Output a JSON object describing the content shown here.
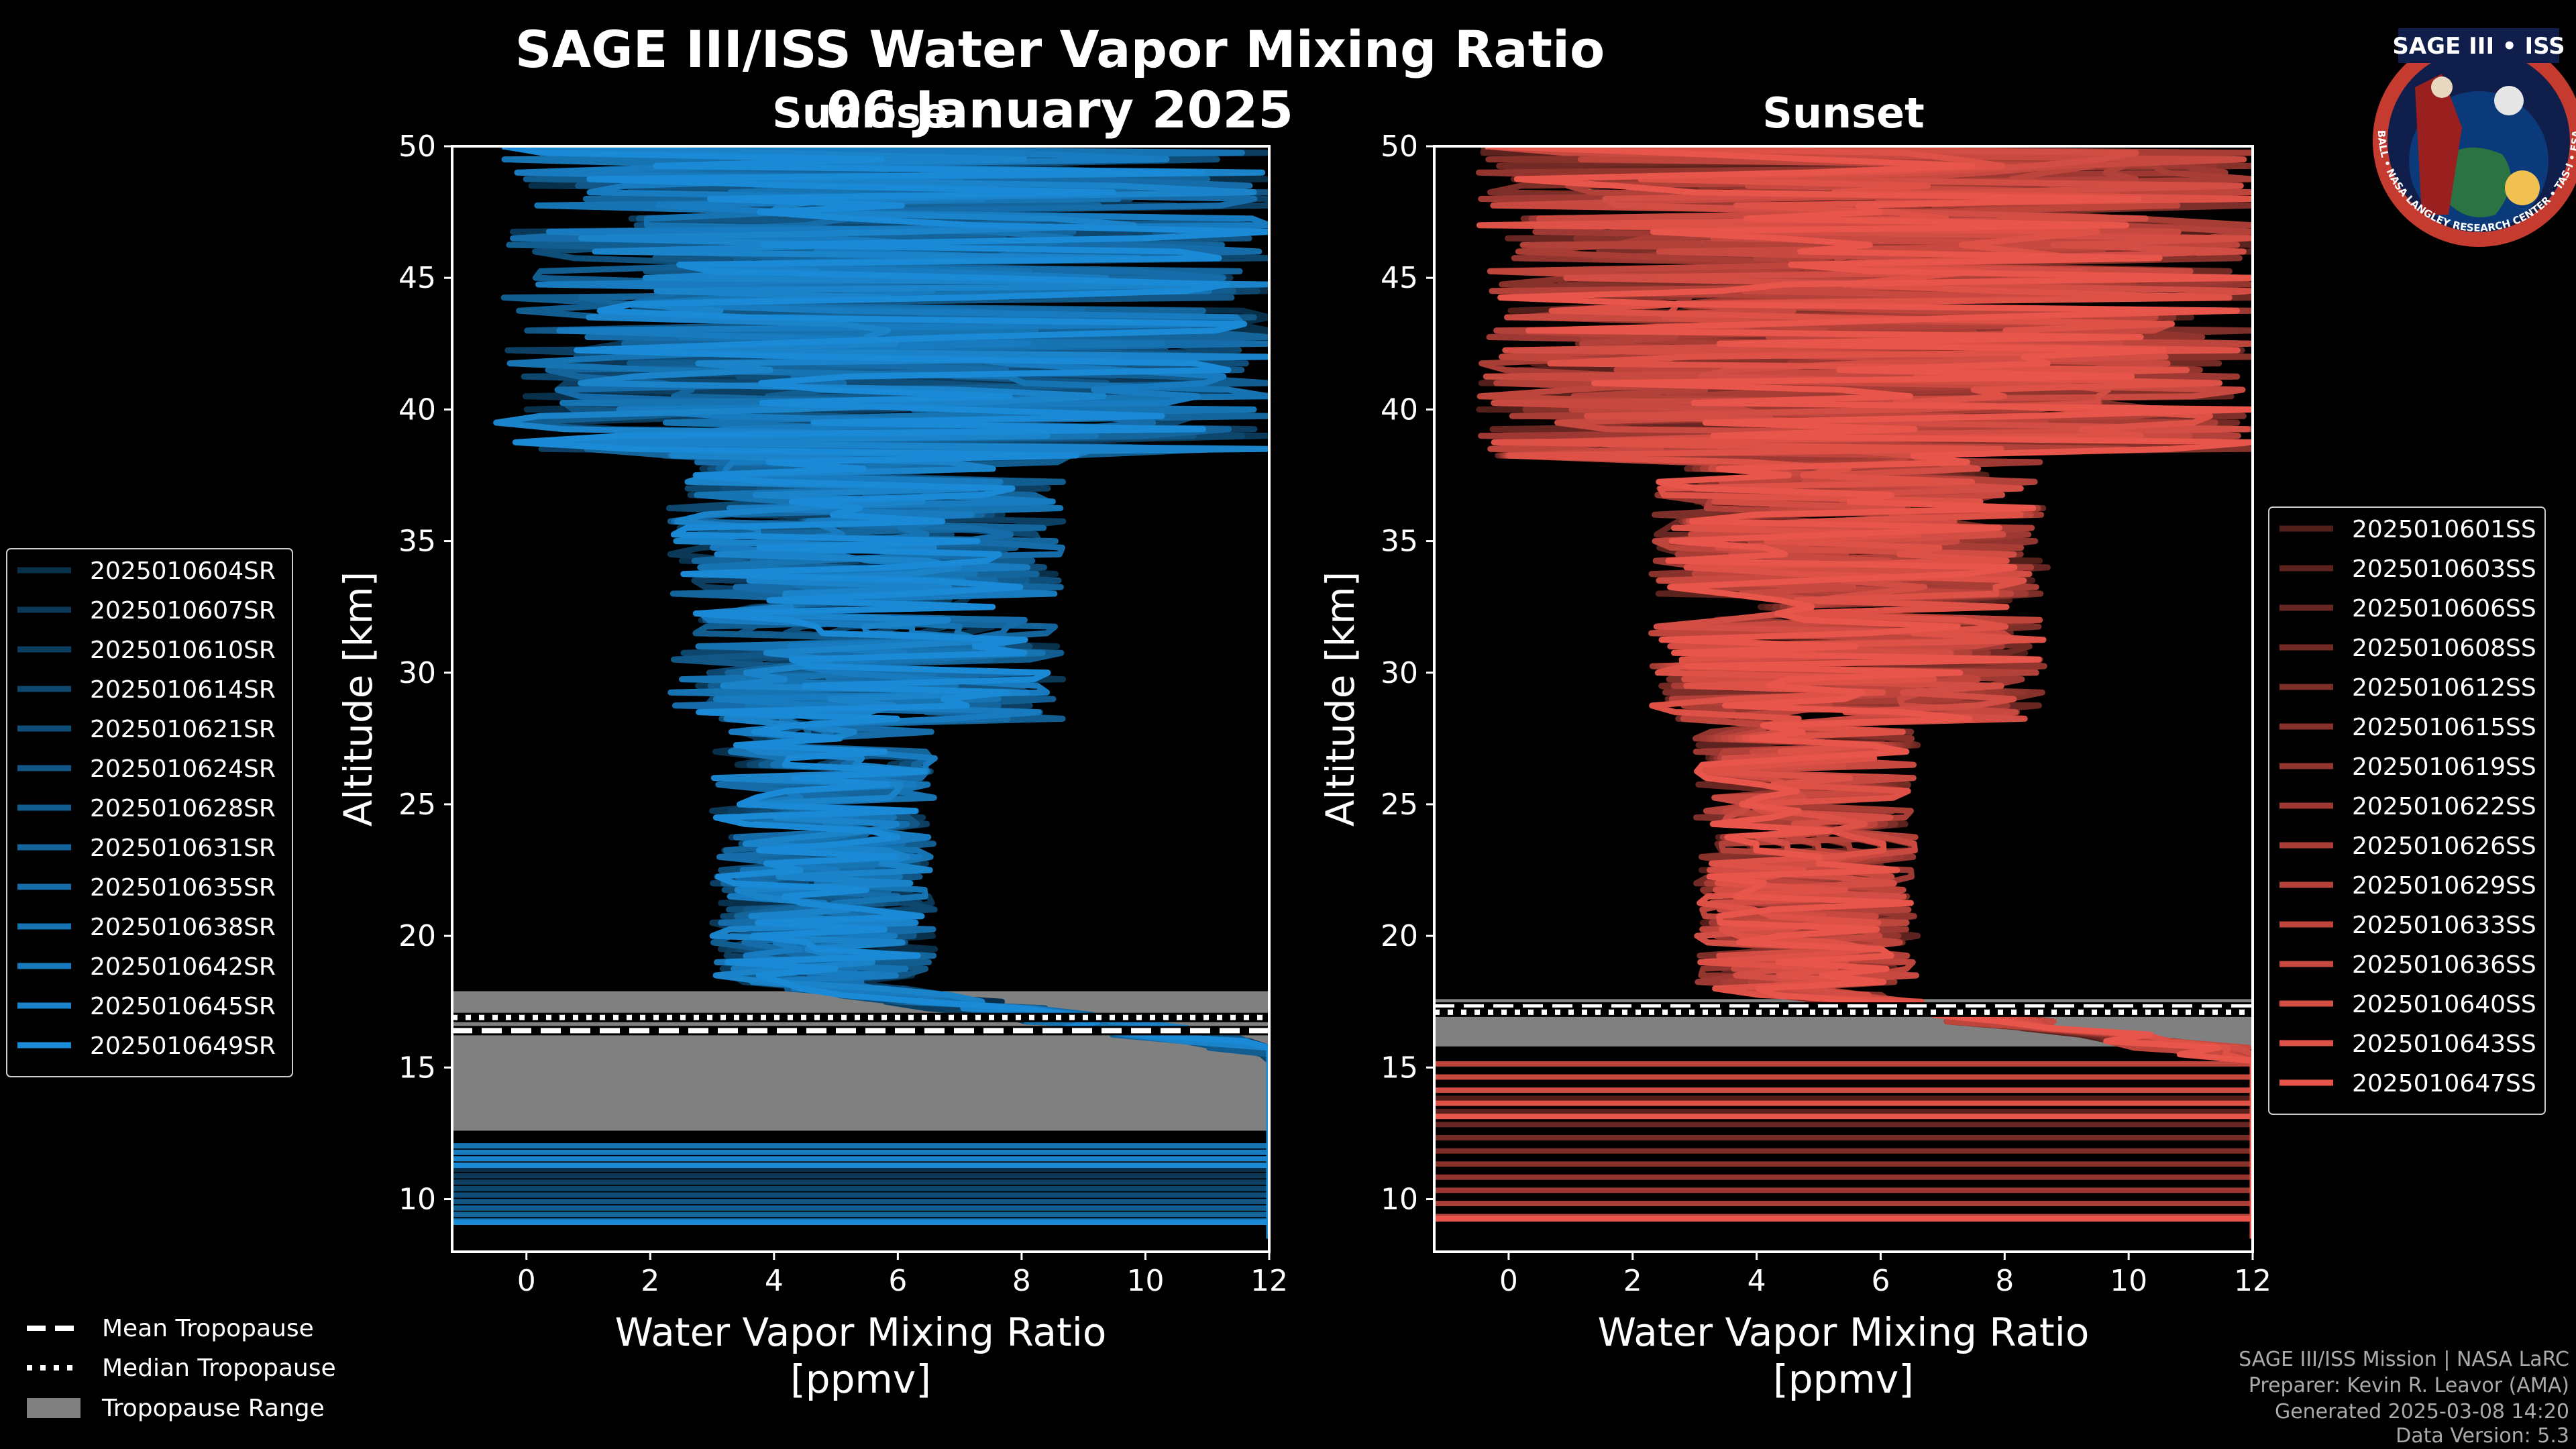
{
  "title": "SAGE III/ISS Water Vapor Mixing Ratio",
  "date": "06 January 2025",
  "logo": {
    "text": "SAGE III • ISS",
    "ring_text": "BALL • NASA LANGLEY RESEARCH CENTER • TAS-I • ESA"
  },
  "bottom_legend": {
    "mean": "Mean Tropopause",
    "median": "Median Tropopause",
    "range": "Tropopause Range"
  },
  "credits": [
    "SAGE III/ISS Mission | NASA LaRC",
    "Preparer: Kevin R. Leavor (AMA)",
    "Generated 2025-03-08 14:20",
    "Data Version: 5.3"
  ],
  "chart_data": [
    {
      "type": "line",
      "panel": "Sunrise",
      "title": "Sunrise",
      "xlabel": "Water Vapor Mixing Ratio [ppmv]",
      "ylabel": "Altitude [km]",
      "xlim": [
        -1.2,
        12
      ],
      "ylim": [
        8,
        50
      ],
      "xticks": [
        0,
        2,
        4,
        6,
        8,
        10,
        12
      ],
      "yticks": [
        10,
        15,
        20,
        25,
        30,
        35,
        40,
        45,
        50
      ],
      "color": "#1b8ad6",
      "tropopause": {
        "mean_km": 16.4,
        "median_km": 16.9,
        "range_km": [
          12.6,
          17.9
        ]
      },
      "series": [
        {
          "name": "2025010604SR"
        },
        {
          "name": "2025010607SR"
        },
        {
          "name": "2025010610SR"
        },
        {
          "name": "2025010614SR"
        },
        {
          "name": "2025010621SR"
        },
        {
          "name": "2025010624SR"
        },
        {
          "name": "2025010628SR"
        },
        {
          "name": "2025010631SR"
        },
        {
          "name": "2025010635SR"
        },
        {
          "name": "2025010638SR"
        },
        {
          "name": "2025010642SR"
        },
        {
          "name": "2025010645SR"
        },
        {
          "name": "2025010649SR"
        }
      ],
      "legend_position": "left"
    },
    {
      "type": "line",
      "panel": "Sunset",
      "title": "Sunset",
      "xlabel": "Water Vapor Mixing Ratio [ppmv]",
      "ylabel": "Altitude [km]",
      "xlim": [
        -1.2,
        12
      ],
      "ylim": [
        8,
        50
      ],
      "xticks": [
        0,
        2,
        4,
        6,
        8,
        10,
        12
      ],
      "yticks": [
        10,
        15,
        20,
        25,
        30,
        35,
        40,
        45,
        50
      ],
      "color": "#e8554a",
      "tropopause": {
        "mean_km": 17.3,
        "median_km": 17.1,
        "range_km": [
          15.8,
          17.6
        ]
      },
      "series": [
        {
          "name": "2025010601SS"
        },
        {
          "name": "2025010603SS"
        },
        {
          "name": "2025010606SS"
        },
        {
          "name": "2025010608SS"
        },
        {
          "name": "2025010612SS"
        },
        {
          "name": "2025010615SS"
        },
        {
          "name": "2025010619SS"
        },
        {
          "name": "2025010622SS"
        },
        {
          "name": "2025010626SS"
        },
        {
          "name": "2025010629SS"
        },
        {
          "name": "2025010633SS"
        },
        {
          "name": "2025010636SS"
        },
        {
          "name": "2025010640SS"
        },
        {
          "name": "2025010643SS"
        },
        {
          "name": "2025010647SS"
        }
      ],
      "legend_position": "right"
    }
  ]
}
